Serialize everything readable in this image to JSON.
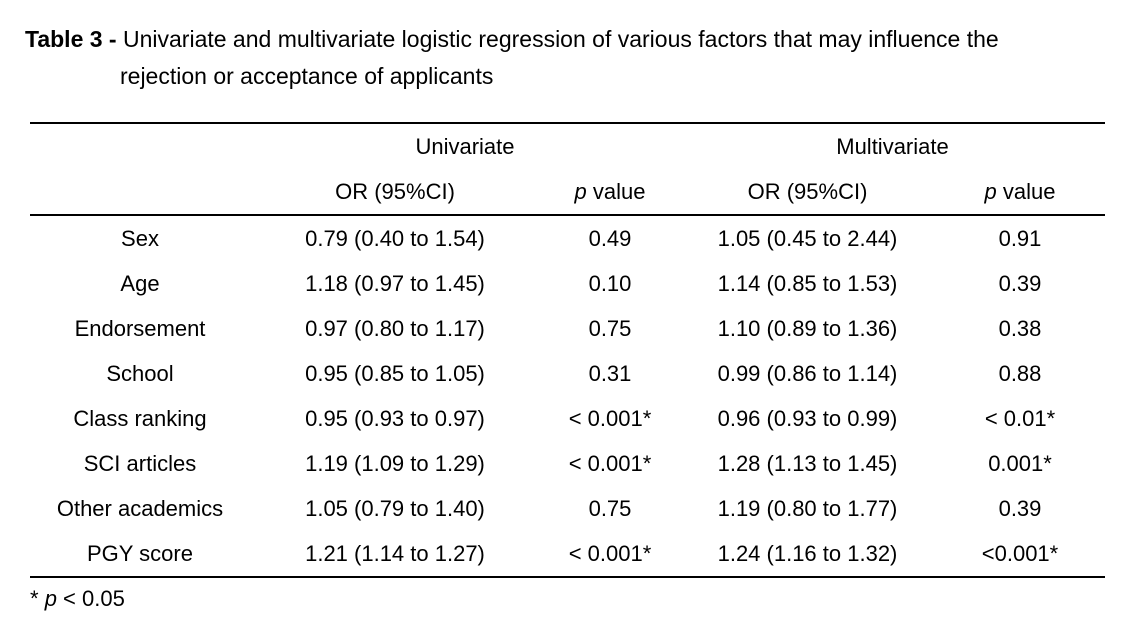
{
  "caption": {
    "label": "Table 3 -",
    "line1": "Univariate and multivariate logistic regression of various factors that may influence the",
    "line2": "rejection or acceptance of applicants"
  },
  "table": {
    "groups": [
      "Univariate",
      "Multivariate"
    ],
    "headers": {
      "or": "OR (95%CI)",
      "p_italic": "p",
      "p_rest": " value"
    },
    "columns": [
      "factor",
      "uni_or",
      "uni_p",
      "multi_or",
      "multi_p"
    ],
    "rows": [
      {
        "factor": "Sex",
        "uni_or": "0.79 (0.40 to 1.54)",
        "uni_p": "0.49",
        "multi_or": "1.05 (0.45 to 2.44)",
        "multi_p": "0.91"
      },
      {
        "factor": "Age",
        "uni_or": "1.18 (0.97 to 1.45)",
        "uni_p": "0.10",
        "multi_or": "1.14 (0.85 to 1.53)",
        "multi_p": "0.39"
      },
      {
        "factor": "Endorsement",
        "uni_or": "0.97 (0.80 to 1.17)",
        "uni_p": "0.75",
        "multi_or": "1.10 (0.89 to 1.36)",
        "multi_p": "0.38"
      },
      {
        "factor": "School",
        "uni_or": "0.95 (0.85 to 1.05)",
        "uni_p": "0.31",
        "multi_or": "0.99 (0.86 to 1.14)",
        "multi_p": "0.88"
      },
      {
        "factor": "Class ranking",
        "uni_or": "0.95 (0.93 to 0.97)",
        "uni_p": "< 0.001*",
        "multi_or": "0.96 (0.93 to 0.99)",
        "multi_p": "< 0.01*"
      },
      {
        "factor": "SCI articles",
        "uni_or": "1.19 (1.09 to 1.29)",
        "uni_p": "< 0.001*",
        "multi_or": "1.28 (1.13 to 1.45)",
        "multi_p": "0.001*"
      },
      {
        "factor": "Other academics",
        "uni_or": "1.05 (0.79 to 1.40)",
        "uni_p": "0.75",
        "multi_or": "1.19 (0.80 to 1.77)",
        "multi_p": "0.39"
      },
      {
        "factor": "PGY score",
        "uni_or": "1.21 (1.14 to 1.27)",
        "uni_p": "< 0.001*",
        "multi_or": "1.24 (1.16 to 1.32)",
        "multi_p": "<0.001*"
      }
    ]
  },
  "footnote": {
    "marker": "*",
    "p": "p",
    "rest": " < 0.05"
  },
  "colors": {
    "background": "#ffffff",
    "text": "#000000",
    "rule": "#000000"
  }
}
